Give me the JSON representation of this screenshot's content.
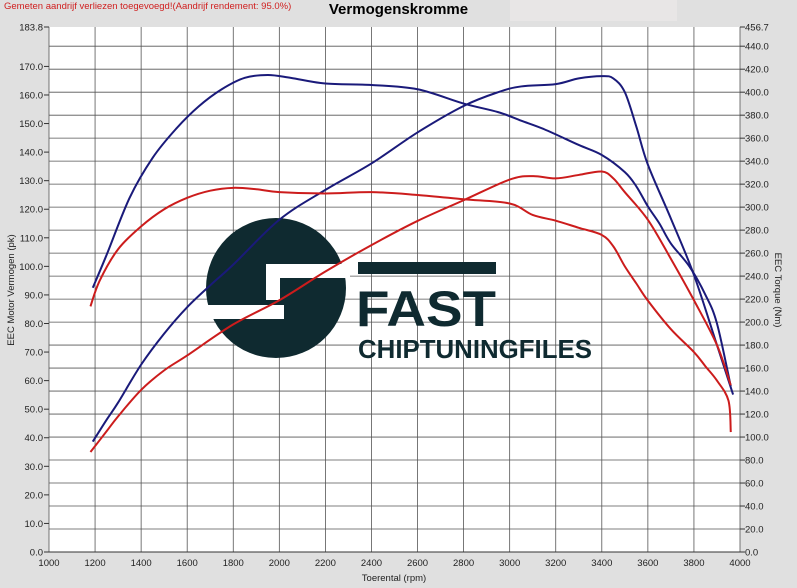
{
  "header": {
    "note": "Gemeten aandrijf verliezen toegevoegd!(Aandrijf rendement: 95.0%)",
    "note_color": "#d02020"
  },
  "watermark": {
    "line1": "FAST",
    "line2": "CHIPTUNINGFILES",
    "color": "#0f2a30"
  },
  "chart_data": {
    "type": "line",
    "title": "Vermogenskromme",
    "xlabel": "Toerental (rpm)",
    "ylabel": "EEC Motor Vermogen (pk)",
    "y2label": "EEC Torque (Nm)",
    "xlim": [
      1000,
      4000
    ],
    "ylim": [
      0,
      183.8
    ],
    "y2lim": [
      0,
      456.7
    ],
    "xticks": [
      1000,
      1200,
      1400,
      1600,
      1800,
      2000,
      2200,
      2400,
      2600,
      2800,
      3000,
      3200,
      3400,
      3600,
      3800,
      4000
    ],
    "yticks": [
      "0.0",
      "10.0",
      "20.0",
      "30.0",
      "40.0",
      "50.0",
      "60.0",
      "70.0",
      "80.0",
      "90.0",
      "100.0",
      "110.0",
      "120.0",
      "130.0",
      "140.0",
      "150.0",
      "160.0",
      "170.0",
      "183.8"
    ],
    "y2ticks": [
      "0.0",
      "20.0",
      "40.0",
      "60.0",
      "80.0",
      "100.0",
      "120.0",
      "140.0",
      "160.0",
      "180.0",
      "200.0",
      "220.0",
      "240.0",
      "260.0",
      "280.0",
      "300.0",
      "320.0",
      "340.0",
      "360.0",
      "380.0",
      "400.0",
      "420.0",
      "440.0",
      "456.7"
    ],
    "grid": true,
    "series": [
      {
        "axis": "left",
        "color": "#1a1a7a",
        "x": [
          1190,
          1250,
          1350,
          1450,
          1550,
          1650,
          1750,
          1850,
          1950,
          2050,
          2200,
          2400,
          2600,
          2800,
          2950,
          3050,
          3150,
          3300,
          3400,
          3500,
          3550,
          3600,
          3650,
          3700,
          3780,
          3850,
          3900,
          3960
        ],
        "y": [
          92.5,
          104,
          124,
          138,
          148,
          156,
          162,
          166,
          167,
          166,
          164,
          163.5,
          162,
          157,
          154,
          151,
          148,
          142.5,
          139,
          133,
          128,
          121,
          115,
          108,
          100,
          90,
          80,
          58
        ]
      },
      {
        "axis": "right",
        "color": "#1a1a7a",
        "x": [
          1190,
          1250,
          1300,
          1400,
          1500,
          1600,
          1700,
          1800,
          2000,
          2200,
          2400,
          2600,
          2800,
          2950,
          3050,
          3200,
          3300,
          3400,
          3450,
          3500,
          3550,
          3600,
          3700,
          3800,
          3900,
          3970
        ],
        "y": [
          96,
          115,
          130,
          163,
          190,
          213,
          232,
          250,
          289,
          315,
          338,
          365,
          388,
          400,
          405,
          407,
          412,
          414,
          412,
          400,
          370,
          337,
          290,
          241,
          180,
          137
        ]
      },
      {
        "axis": "left",
        "color": "#cc1c1c",
        "x": [
          1180,
          1220,
          1300,
          1400,
          1500,
          1600,
          1700,
          1800,
          1900,
          2000,
          2200,
          2400,
          2600,
          2800,
          3000,
          3100,
          3200,
          3300,
          3400,
          3450,
          3500,
          3550,
          3600,
          3700,
          3800,
          3850,
          3900,
          3950,
          3960
        ],
        "y": [
          86,
          95,
          106,
          114,
          120,
          124,
          126.5,
          127.5,
          127,
          126,
          125.5,
          126,
          125,
          123.5,
          122,
          118,
          116,
          113.5,
          111,
          107,
          100,
          94,
          88,
          78,
          70,
          65,
          60,
          53,
          42
        ]
      },
      {
        "axis": "right",
        "color": "#cc1c1c",
        "x": [
          1180,
          1250,
          1300,
          1400,
          1500,
          1600,
          1800,
          2000,
          2200,
          2400,
          2600,
          2800,
          3000,
          3100,
          3200,
          3300,
          3400,
          3450,
          3500,
          3600,
          3700,
          3800,
          3900,
          3960
        ],
        "y": [
          87,
          105,
          118,
          141,
          158,
          171,
          198,
          219,
          244,
          267,
          288,
          306,
          324,
          327,
          325,
          328,
          331,
          325,
          313,
          289,
          255,
          219,
          180,
          145
        ]
      }
    ]
  }
}
